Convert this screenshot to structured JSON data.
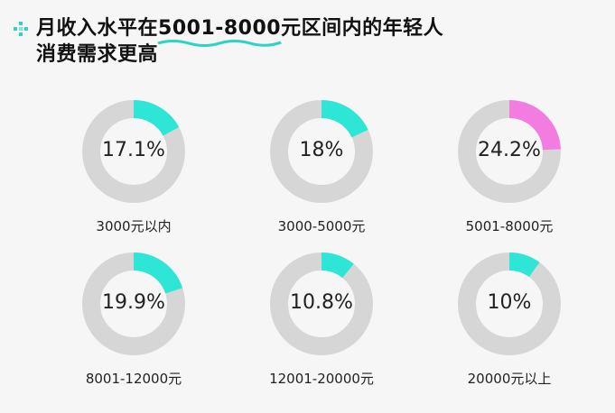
{
  "title": {
    "prefix": "月收入水平在",
    "highlight": "5001-8000",
    "suffix": "元区间内的年轻人",
    "line2": "消费需求更高"
  },
  "colors": {
    "accent": "#2ee6d6",
    "highlight_slice": "#f27ce0",
    "ring": "#d6d6d6",
    "bullet": "#2fd3c6"
  },
  "chart_data": {
    "type": "donut",
    "title": "月收入水平在5001-8000元区间内的年轻人消费需求更高",
    "unit": "%",
    "categories": [
      "3000元以内",
      "3000-5000元",
      "5001-8000元",
      "8001-12000元",
      "12001-20000元",
      "20000元以上"
    ],
    "values": [
      17.1,
      18,
      24.2,
      19.9,
      10.8,
      10
    ],
    "value_labels": [
      "17.1%",
      "18%",
      "24.2%",
      "19.9%",
      "10.8%",
      "10%"
    ],
    "highlighted_category": "5001-8000元"
  }
}
